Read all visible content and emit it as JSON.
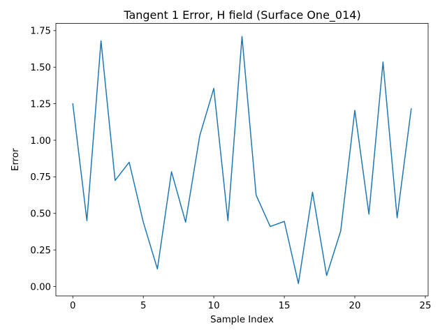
{
  "chart_data": {
    "type": "line",
    "title": "Tangent 1 Error, H field (Surface One_014)",
    "xlabel": "Sample Index",
    "ylabel": "Error",
    "xlim": [
      -1.2,
      25.2
    ],
    "ylim": [
      -0.0645,
      1.7995
    ],
    "xticks": [
      0,
      5,
      10,
      15,
      20,
      25
    ],
    "yticks": [
      0.0,
      0.25,
      0.5,
      0.75,
      1.0,
      1.25,
      1.5,
      1.75
    ],
    "ytick_labels": [
      "0.00",
      "0.25",
      "0.50",
      "0.75",
      "1.00",
      "1.25",
      "1.50",
      "1.75"
    ],
    "grid": false,
    "series": [
      {
        "color": "#1f77b4",
        "x": [
          0,
          1,
          2,
          3,
          4,
          5,
          6,
          7,
          8,
          9,
          10,
          11,
          12,
          13,
          14,
          15,
          16,
          17,
          18,
          19,
          20,
          21,
          22,
          23,
          24
        ],
        "values": [
          1.25,
          0.45,
          1.68,
          0.725,
          0.85,
          0.44,
          0.12,
          0.785,
          0.44,
          1.03,
          1.355,
          0.45,
          1.71,
          0.625,
          0.41,
          0.445,
          0.02,
          0.645,
          0.075,
          0.38,
          1.205,
          0.495,
          1.535,
          0.47,
          1.215
        ]
      }
    ]
  }
}
